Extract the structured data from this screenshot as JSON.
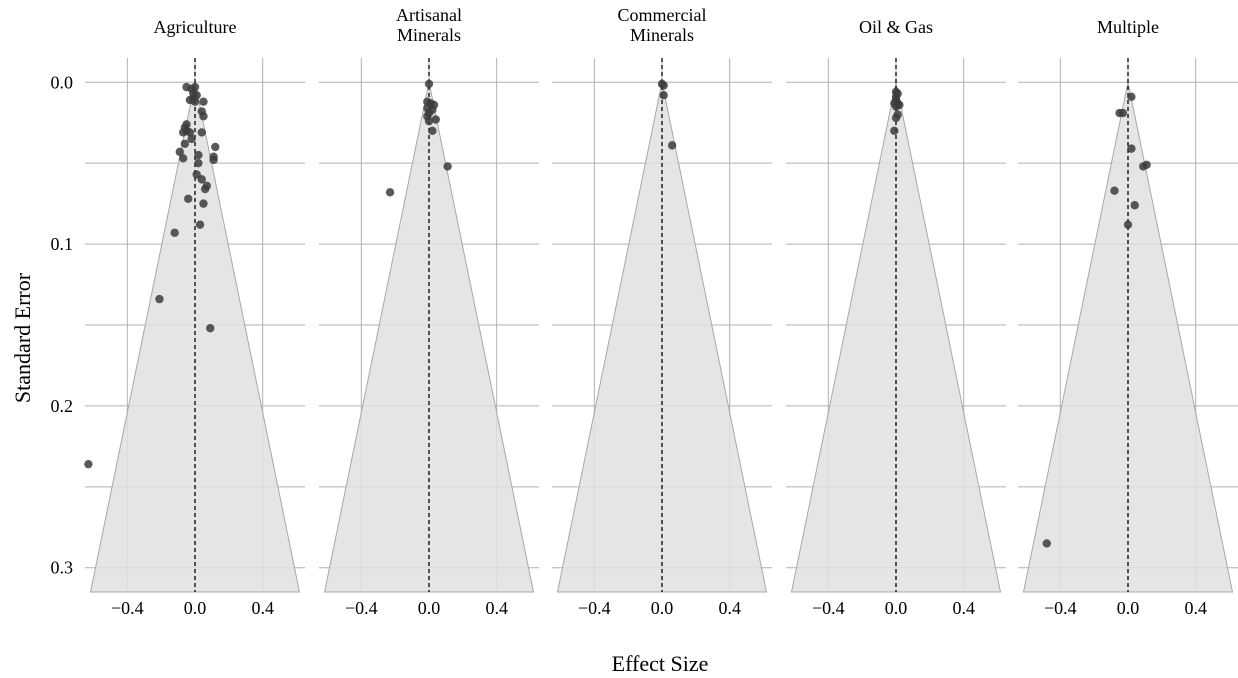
{
  "chart_data": {
    "type": "scatter",
    "subtype": "funnel-plot-facets",
    "xlabel": "Effect Size",
    "ylabel": "Standard Error",
    "xlim": [
      -0.65,
      0.65
    ],
    "ylim": [
      0.315,
      -0.015
    ],
    "y_reversed": true,
    "xticks": [
      -0.4,
      0.0,
      0.4
    ],
    "xtick_labels": [
      "−0.4",
      "0.0",
      "0.4"
    ],
    "yticks": [
      0.0,
      0.1,
      0.2,
      0.3
    ],
    "ytick_labels": [
      "0.0",
      "0.1",
      "0.2",
      "0.3"
    ],
    "grid": true,
    "funnel_pseudo_ci_width": 1.96,
    "reference_line_x": 0,
    "colors": {
      "funnel_fill": "#e0e0e0",
      "funnel_edge": "#a8a8a8",
      "grid": "#b0b0b0",
      "point": "#3c3c3c"
    },
    "panels": [
      {
        "title": "Agriculture",
        "points": [
          {
            "x": -0.05,
            "y": 0.003
          },
          {
            "x": -0.02,
            "y": 0.004
          },
          {
            "x": 0.0,
            "y": 0.003
          },
          {
            "x": -0.01,
            "y": 0.007
          },
          {
            "x": 0.01,
            "y": 0.008
          },
          {
            "x": -0.01,
            "y": 0.01
          },
          {
            "x": -0.03,
            "y": 0.011
          },
          {
            "x": 0.0,
            "y": 0.012
          },
          {
            "x": 0.05,
            "y": 0.012
          },
          {
            "x": 0.04,
            "y": 0.018
          },
          {
            "x": 0.05,
            "y": 0.021
          },
          {
            "x": -0.05,
            "y": 0.026
          },
          {
            "x": -0.06,
            "y": 0.028
          },
          {
            "x": -0.05,
            "y": 0.03
          },
          {
            "x": -0.07,
            "y": 0.031
          },
          {
            "x": -0.03,
            "y": 0.031
          },
          {
            "x": 0.04,
            "y": 0.031
          },
          {
            "x": -0.02,
            "y": 0.035
          },
          {
            "x": -0.06,
            "y": 0.038
          },
          {
            "x": 0.12,
            "y": 0.04
          },
          {
            "x": -0.09,
            "y": 0.043
          },
          {
            "x": 0.02,
            "y": 0.045
          },
          {
            "x": 0.11,
            "y": 0.046
          },
          {
            "x": -0.07,
            "y": 0.047
          },
          {
            "x": 0.11,
            "y": 0.048
          },
          {
            "x": 0.02,
            "y": 0.05
          },
          {
            "x": 0.01,
            "y": 0.057
          },
          {
            "x": 0.04,
            "y": 0.06
          },
          {
            "x": 0.07,
            "y": 0.064
          },
          {
            "x": 0.06,
            "y": 0.066
          },
          {
            "x": -0.04,
            "y": 0.072
          },
          {
            "x": 0.05,
            "y": 0.075
          },
          {
            "x": 0.03,
            "y": 0.088
          },
          {
            "x": -0.12,
            "y": 0.093
          },
          {
            "x": -0.21,
            "y": 0.134
          },
          {
            "x": 0.09,
            "y": 0.152
          },
          {
            "x": -0.63,
            "y": 0.236
          }
        ]
      },
      {
        "title": "Artisanal\nMinerals",
        "points": [
          {
            "x": 0.0,
            "y": 0.001
          },
          {
            "x": -0.01,
            "y": 0.012
          },
          {
            "x": 0.01,
            "y": 0.013
          },
          {
            "x": 0.03,
            "y": 0.014
          },
          {
            "x": -0.01,
            "y": 0.016
          },
          {
            "x": 0.02,
            "y": 0.017
          },
          {
            "x": 0.0,
            "y": 0.019
          },
          {
            "x": -0.01,
            "y": 0.021
          },
          {
            "x": 0.04,
            "y": 0.023
          },
          {
            "x": 0.0,
            "y": 0.024
          },
          {
            "x": 0.02,
            "y": 0.03
          },
          {
            "x": 0.11,
            "y": 0.052
          },
          {
            "x": -0.23,
            "y": 0.068
          }
        ]
      },
      {
        "title": "Commercial\nMinerals",
        "points": [
          {
            "x": 0.0,
            "y": 0.001
          },
          {
            "x": 0.01,
            "y": 0.002
          },
          {
            "x": 0.01,
            "y": 0.008
          },
          {
            "x": 0.06,
            "y": 0.039
          }
        ]
      },
      {
        "title": "Oil & Gas",
        "points": [
          {
            "x": 0.0,
            "y": 0.006
          },
          {
            "x": 0.01,
            "y": 0.007
          },
          {
            "x": 0.0,
            "y": 0.009
          },
          {
            "x": 0.0,
            "y": 0.011
          },
          {
            "x": -0.01,
            "y": 0.013
          },
          {
            "x": 0.01,
            "y": 0.013
          },
          {
            "x": 0.02,
            "y": 0.014
          },
          {
            "x": 0.0,
            "y": 0.015
          },
          {
            "x": 0.01,
            "y": 0.02
          },
          {
            "x": 0.0,
            "y": 0.022
          },
          {
            "x": -0.01,
            "y": 0.03
          }
        ]
      },
      {
        "title": "Multiple",
        "points": [
          {
            "x": 0.02,
            "y": 0.009
          },
          {
            "x": -0.05,
            "y": 0.019
          },
          {
            "x": -0.03,
            "y": 0.019
          },
          {
            "x": 0.02,
            "y": 0.041
          },
          {
            "x": 0.09,
            "y": 0.052
          },
          {
            "x": 0.11,
            "y": 0.051
          },
          {
            "x": -0.08,
            "y": 0.067
          },
          {
            "x": 0.04,
            "y": 0.076
          },
          {
            "x": 0.0,
            "y": 0.088
          },
          {
            "x": -0.48,
            "y": 0.285
          }
        ]
      }
    ]
  }
}
